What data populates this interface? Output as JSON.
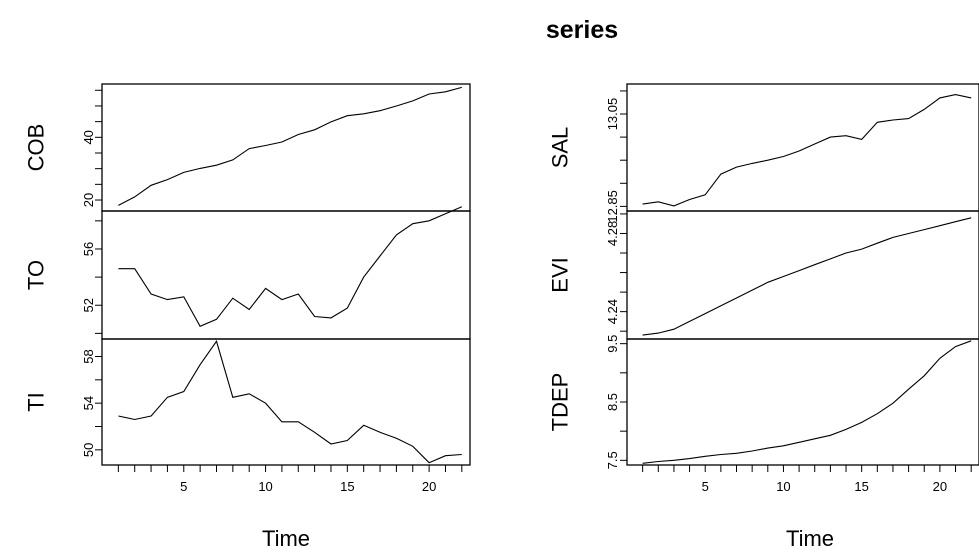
{
  "chart_data": {
    "type": "line",
    "title": "series",
    "xlabel": "Time",
    "x": [
      1,
      2,
      3,
      4,
      5,
      6,
      7,
      8,
      9,
      10,
      11,
      12,
      13,
      14,
      15,
      16,
      17,
      18,
      19,
      20,
      21,
      22
    ],
    "xlim": [
      0,
      22.5
    ],
    "xticks": [
      5,
      10,
      15,
      20
    ],
    "panels": [
      {
        "column": "left",
        "name": "COB",
        "ylabel": "COB",
        "ylim": [
          16.5,
          57
        ],
        "yticks": [
          20,
          40
        ],
        "yminor": [
          25,
          30,
          35,
          45,
          50,
          55
        ],
        "values": [
          18.3,
          21.0,
          24.7,
          26.5,
          28.8,
          30.1,
          31.1,
          32.8,
          36.4,
          37.4,
          38.5,
          40.9,
          42.4,
          44.9,
          46.9,
          47.5,
          48.5,
          50.0,
          51.6,
          53.8,
          54.5,
          55.9
        ]
      },
      {
        "column": "left",
        "name": "TO",
        "ylabel": "TO",
        "ylim": [
          49.6,
          58.7
        ],
        "yticks": [
          52,
          56
        ],
        "yminor": [
          50,
          54,
          58
        ],
        "values": [
          54.6,
          54.6,
          52.8,
          52.4,
          52.6,
          50.5,
          51.0,
          52.5,
          51.7,
          53.2,
          52.4,
          52.8,
          51.2,
          51.1,
          51.8,
          54.0,
          55.5,
          57.0,
          57.8,
          58.0,
          58.5,
          59.0
        ]
      },
      {
        "column": "left",
        "name": "TI",
        "ylabel": "TI",
        "ylim": [
          48.7,
          59.5
        ],
        "yticks": [
          50,
          54,
          58
        ],
        "yminor": [
          52,
          56
        ],
        "values": [
          52.9,
          52.6,
          52.9,
          54.5,
          55.0,
          57.3,
          59.3,
          54.5,
          54.8,
          54.0,
          52.4,
          52.4,
          51.5,
          50.5,
          50.8,
          52.1,
          51.5,
          51.0,
          50.3,
          48.9,
          49.5,
          49.6
        ]
      },
      {
        "column": "right",
        "name": "SAL",
        "ylabel": "SAL",
        "ylim": [
          12.84,
          13.115
        ],
        "yticks": [
          12.85,
          13.05
        ],
        "yminor": [
          12.9,
          12.95,
          13.0,
          13.1
        ],
        "values": [
          12.855,
          12.86,
          12.851,
          12.865,
          12.875,
          12.92,
          12.935,
          12.943,
          12.95,
          12.958,
          12.97,
          12.985,
          13.0,
          13.003,
          12.995,
          13.032,
          13.037,
          13.04,
          13.06,
          13.085,
          13.092,
          13.085
        ]
      },
      {
        "column": "right",
        "name": "EVI",
        "ylabel": "EVI",
        "ylim": [
          4.226,
          4.2915
        ],
        "yticks": [
          4.24,
          4.28
        ],
        "yminor": [
          4.23,
          4.25,
          4.26,
          4.27,
          4.29
        ],
        "values": [
          4.228,
          4.229,
          4.231,
          4.235,
          4.239,
          4.243,
          4.247,
          4.251,
          4.255,
          4.258,
          4.261,
          4.264,
          4.267,
          4.27,
          4.272,
          4.275,
          4.278,
          4.28,
          4.282,
          4.284,
          4.286,
          4.288
        ]
      },
      {
        "column": "right",
        "name": "TDEP",
        "ylabel": "TDEP",
        "ylim": [
          7.42,
          9.58
        ],
        "yticks": [
          7.5,
          8.5,
          9.5
        ],
        "yminor": [
          8.0,
          9.0
        ],
        "values": [
          7.45,
          7.48,
          7.5,
          7.53,
          7.57,
          7.6,
          7.62,
          7.66,
          7.71,
          7.75,
          7.81,
          7.87,
          7.93,
          8.03,
          8.15,
          8.3,
          8.48,
          8.72,
          8.95,
          9.25,
          9.45,
          9.55
        ]
      }
    ],
    "grid": false,
    "legend": "none"
  }
}
